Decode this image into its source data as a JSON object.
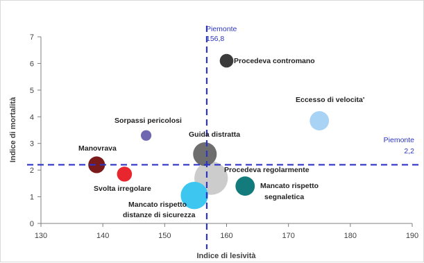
{
  "chart_data": {
    "type": "scatter",
    "subtype": "bubble",
    "title": "",
    "xlabel": "Indice di lesività",
    "ylabel": "Indice di mortalità",
    "xlim": [
      130,
      190
    ],
    "ylim": [
      0,
      7
    ],
    "x_ticks": [
      "130",
      "140",
      "150",
      "160",
      "170",
      "180",
      "190"
    ],
    "y_ticks": [
      "0",
      "1",
      "2",
      "3",
      "4",
      "5",
      "6",
      "7"
    ],
    "grid": false,
    "legend": "none",
    "reference_lines": {
      "vertical": {
        "value": 156.8,
        "label_line1": "Piemonte",
        "label_line2": "156,8"
      },
      "horizontal": {
        "value": 2.2,
        "label_line1": "Piemonte",
        "label_line2": "2,2"
      },
      "color": "#2b35c7"
    },
    "points": [
      {
        "label": "Procedeva contromano",
        "x": 160,
        "y": 6.1,
        "size": 1,
        "color": "#3b3b3b"
      },
      {
        "label": "Eccesso di velocita'",
        "x": 175,
        "y": 3.85,
        "size": 2,
        "color": "#a9d3f5"
      },
      {
        "label": "Sorpassi pericolosi",
        "x": 147,
        "y": 3.3,
        "size": 0.6,
        "color": "#6f68b0"
      },
      {
        "label": "Guida distratta",
        "x": 156.5,
        "y": 2.6,
        "size": 3,
        "color": "#6e6e6e"
      },
      {
        "label": "Manovrava",
        "x": 139,
        "y": 2.2,
        "size": 1.5,
        "color": "#7a1a1a"
      },
      {
        "label": "Svolta irregolare",
        "x": 143.5,
        "y": 1.85,
        "size": 1.2,
        "color": "#e8262e"
      },
      {
        "label": "Procedeva regolarmente",
        "x": 157.5,
        "y": 1.7,
        "size": 6,
        "color": "#c8c8c8"
      },
      {
        "label": "Mancato rispetto distanze di sicurezza",
        "x": 154.8,
        "y": 1.05,
        "size": 4,
        "color": "#3cc6f0"
      },
      {
        "label": "Mancato rispetto segnaletica",
        "x": 163,
        "y": 1.4,
        "size": 2,
        "color": "#137b7b"
      }
    ]
  },
  "point_labels": {
    "contromano": "Procedeva contromano",
    "velocita": "Eccesso di velocita'",
    "sorpassi": "Sorpassi pericolosi",
    "guida": "Guida distratta",
    "manovrava": "Manovrava",
    "svolta": "Svolta irregolare",
    "regolarmente": "Procedeva regolarmente",
    "distanze_line1": "Mancato rispetto",
    "distanze_line2": "distanze di sicurezza",
    "segnaletica_line1": "Mancato rispetto",
    "segnaletica_line2": "segnaletica"
  }
}
